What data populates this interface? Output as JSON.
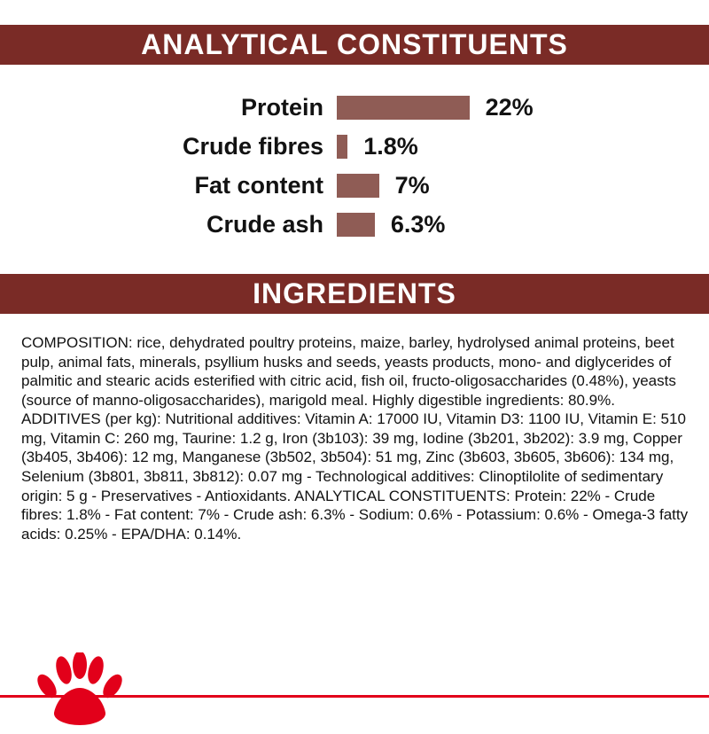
{
  "sections": {
    "analytical_title": "ANALYTICAL CONSTITUENTS",
    "ingredients_title": "INGREDIENTS"
  },
  "chart_data": {
    "type": "bar",
    "orientation": "horizontal",
    "title": "ANALYTICAL CONSTITUENTS",
    "categories": [
      "Protein",
      "Crude fibres",
      "Fat content",
      "Crude ash"
    ],
    "values": [
      22,
      1.8,
      7,
      6.3
    ],
    "value_labels": [
      "22%",
      "1.8%",
      "7%",
      "6.3%"
    ],
    "xlim": [
      0,
      25
    ],
    "grid": false,
    "legend": "none",
    "bar_color": "#8f5c55"
  },
  "ingredients": {
    "text": "COMPOSITION: rice, dehydrated poultry proteins, maize, barley, hydrolysed animal proteins, beet pulp, animal fats, minerals, psyllium husks and seeds, yeasts products, mono- and diglycerides of palmitic and stearic acids esterified with citric acid, fish oil, fructo-oligosaccharides (0.48%), yeasts (source of manno-oligosaccharides), marigold meal. Highly digestible ingredients: 80.9%. ADDITIVES (per kg): Nutritional additives: Vitamin A: 17000 IU, Vitamin D3: 1100 IU, Vitamin E: 510 mg, Vitamin C: 260 mg, Taurine: 1.2 g, Iron (3b103): 39 mg, Iodine (3b201, 3b202): 3.9 mg, Copper (3b405, 3b406): 12 mg, Manganese (3b502, 3b504): 51 mg, Zinc (3b603, 3b605, 3b606): 134 mg, Selenium (3b801, 3b811, 3b812): 0.07 mg - Technological additives: Clinoptilolite of sedimentary origin: 5 g - Preservatives - Antioxidants. ANALYTICAL CONSTITUENTS: Protein: 22% - Crude fibres: 1.8% - Fat content: 7% - Crude ash: 6.3% - Sodium: 0.6% - Potassium: 0.6% - Omega-3 fatty acids: 0.25% - EPA/DHA: 0.14%."
  },
  "colors": {
    "header_bg": "#7a2b26",
    "bar_fill": "#8f5c55",
    "accent_red": "#e2001a"
  },
  "footer": {
    "logo": "royal-canin-paw-print"
  }
}
